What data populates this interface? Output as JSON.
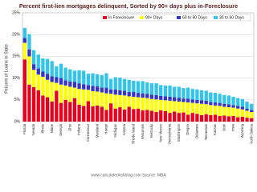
{
  "chart_data": {
    "type": "stacked_bar",
    "title": "Percent first-lien mortgages delinquent, Sorted by 90+ days plus in-Foreclosure",
    "y_label": "Percent of Loans in State",
    "footer": "www.calculatedriskblog.com  Source: MBA",
    "categories": [
      "Florida",
      null,
      "Nevada",
      null,
      "Illinois",
      null,
      "Maine",
      null,
      "Georgia",
      null,
      "Ohio",
      null,
      "Indiana",
      null,
      "Connecticut",
      null,
      "Maryland",
      null,
      "Hawaii",
      null,
      "Michigan",
      null,
      "Arizona",
      null,
      "Rhode Island",
      null,
      "Wisconsin",
      null,
      "Kentucky",
      null,
      "New Mexico",
      null,
      "Pennsylvania",
      null,
      "Washington",
      null,
      "Oregon",
      null,
      "Delaware",
      null,
      "Tennessee",
      null,
      "Kansas",
      null,
      "Utah",
      null,
      "Iowa",
      null,
      "Wyoming",
      null,
      "North Dakota"
    ],
    "series": [
      {
        "name": "In Foreclosure",
        "color": "#e8001c",
        "values": [
          14.3,
          8.5,
          7.9,
          7.2,
          6.0,
          5.6,
          4.6,
          7.1,
          4.3,
          5.0,
          4.5,
          5.4,
          3.9,
          3.6,
          4.7,
          3.5,
          3.7,
          3.4,
          2.7,
          4.2,
          3.0,
          3.3,
          2.8,
          3.4,
          2.9,
          3.0,
          2.6,
          2.7,
          2.5,
          2.2,
          2.6,
          2.4,
          2.0,
          2.3,
          2.0,
          2.1,
          1.6,
          2.0,
          1.8,
          1.5,
          1.7,
          1.5,
          1.6,
          1.3,
          1.4,
          1.2,
          1.3,
          1.0,
          1.1,
          0.9,
          0.8
        ]
      },
      {
        "name": "90+ Days",
        "color": "#ffff00",
        "values": [
          3.8,
          6.5,
          4.0,
          3.6,
          4.3,
          4.0,
          4.5,
          1.8,
          4.2,
          3.3,
          3.5,
          2.4,
          3.6,
          3.8,
          2.6,
          3.5,
          3.2,
          3.3,
          3.8,
          2.2,
          3.2,
          2.8,
          3.2,
          2.4,
          2.8,
          2.6,
          2.9,
          2.7,
          2.7,
          2.9,
          2.4,
          2.5,
          2.8,
          2.4,
          2.6,
          2.4,
          2.8,
          2.3,
          2.4,
          2.6,
          2.3,
          2.3,
          2.1,
          2.3,
          2.0,
          2.1,
          1.9,
          2.0,
          1.7,
          1.6,
          1.4
        ]
      },
      {
        "name": "60 to 90 Days",
        "color": "#3535c8",
        "values": [
          1.1,
          1.6,
          1.3,
          1.4,
          1.2,
          1.4,
          1.3,
          1.3,
          1.5,
          1.2,
          1.2,
          1.3,
          1.3,
          1.2,
          1.1,
          1.2,
          1.2,
          1.1,
          1.3,
          1.0,
          1.2,
          1.1,
          1.1,
          1.0,
          1.1,
          1.0,
          1.0,
          1.0,
          1.0,
          1.0,
          0.9,
          0.9,
          0.9,
          0.9,
          0.9,
          0.8,
          0.9,
          0.8,
          0.8,
          0.8,
          0.8,
          0.7,
          0.7,
          0.7,
          0.7,
          0.7,
          0.6,
          0.6,
          0.6,
          0.5,
          0.5
        ]
      },
      {
        "name": "30 to 60 Days",
        "color": "#33c4ea",
        "values": [
          2.3,
          3.5,
          3.2,
          3.2,
          3.0,
          3.4,
          3.5,
          2.5,
          3.3,
          2.9,
          2.8,
          2.6,
          3.0,
          3.1,
          2.6,
          2.9,
          2.8,
          2.9,
          3.3,
          2.4,
          2.8,
          2.9,
          2.7,
          2.8,
          2.6,
          2.7,
          2.8,
          2.6,
          2.6,
          2.7,
          2.5,
          2.5,
          2.6,
          2.4,
          2.5,
          2.4,
          2.5,
          2.4,
          2.4,
          2.3,
          2.3,
          2.2,
          2.2,
          2.1,
          2.0,
          2.0,
          1.9,
          1.8,
          1.8,
          1.6,
          1.4
        ]
      }
    ],
    "ylim": [
      0,
      25
    ],
    "yticks": [
      {
        "value": 0,
        "label": "0%"
      },
      {
        "value": 5,
        "label": "5%"
      },
      {
        "value": 10,
        "label": "10%"
      },
      {
        "value": 15,
        "label": "15%"
      },
      {
        "value": 20,
        "label": "20%"
      },
      {
        "value": 25,
        "label": "25%"
      }
    ],
    "grid": true,
    "legend": "top-right"
  }
}
